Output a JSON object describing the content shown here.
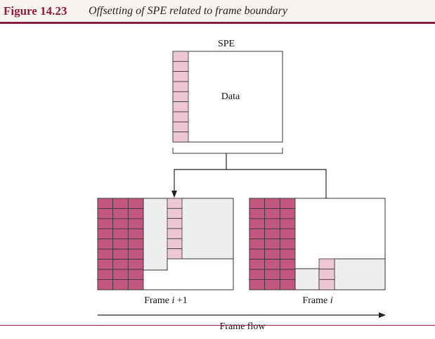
{
  "figure": {
    "number": "Figure 14.23",
    "title": "Offsetting of SPE related to frame boundary"
  },
  "spe": {
    "label": "SPE",
    "data_label": "Data"
  },
  "frames": {
    "left": {
      "prefix": "Frame ",
      "var": "i",
      "suffix": " +1"
    },
    "right": {
      "prefix": "Frame ",
      "var": "i",
      "suffix": ""
    }
  },
  "flow": {
    "label": "Frame flow"
  },
  "colors": {
    "accent": "#8e1b3c",
    "overhead": "#c2577f",
    "poh": "#eec7d6",
    "payload": "#eeeeee"
  }
}
